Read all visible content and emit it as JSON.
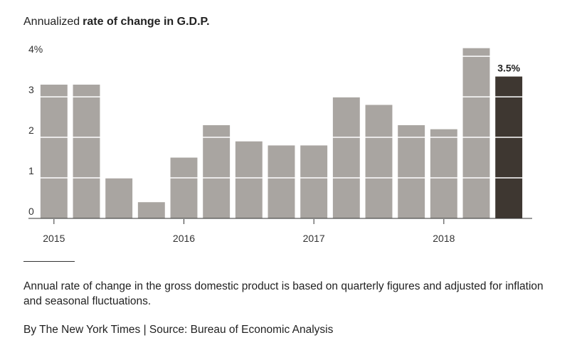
{
  "chart_data": {
    "type": "bar",
    "title_parts": [
      "Annualized",
      "rate of change in G.D.P."
    ],
    "categories": [
      "2015",
      null,
      null,
      null,
      "2016",
      null,
      null,
      null,
      "2017",
      null,
      null,
      null,
      "2018",
      null,
      null
    ],
    "values": [
      3.3,
      3.3,
      1.0,
      0.4,
      1.5,
      2.3,
      1.9,
      1.8,
      1.8,
      3.0,
      2.8,
      2.3,
      2.2,
      4.2,
      3.5
    ],
    "value_labels": [
      null,
      null,
      null,
      null,
      null,
      null,
      null,
      null,
      null,
      null,
      null,
      null,
      null,
      null,
      "3.5%"
    ],
    "colors": [
      "#a9a5a1",
      "#a9a5a1",
      "#a9a5a1",
      "#a9a5a1",
      "#a9a5a1",
      "#a9a5a1",
      "#a9a5a1",
      "#a9a5a1",
      "#a9a5a1",
      "#a9a5a1",
      "#a9a5a1",
      "#a9a5a1",
      "#a9a5a1",
      "#a9a5a1",
      "#3e3731"
    ],
    "ylim": [
      0,
      4.3
    ],
    "yticks": [
      0,
      1,
      2,
      3,
      {
        "value": 4,
        "label": "4%"
      }
    ],
    "grid": true
  },
  "note": "Annual rate of change in the gross domestic product is based on quarterly figures and adjusted for inflation and seasonal fluctuations.",
  "byline": "By The New York Times | Source: Bureau of Economic Analysis"
}
